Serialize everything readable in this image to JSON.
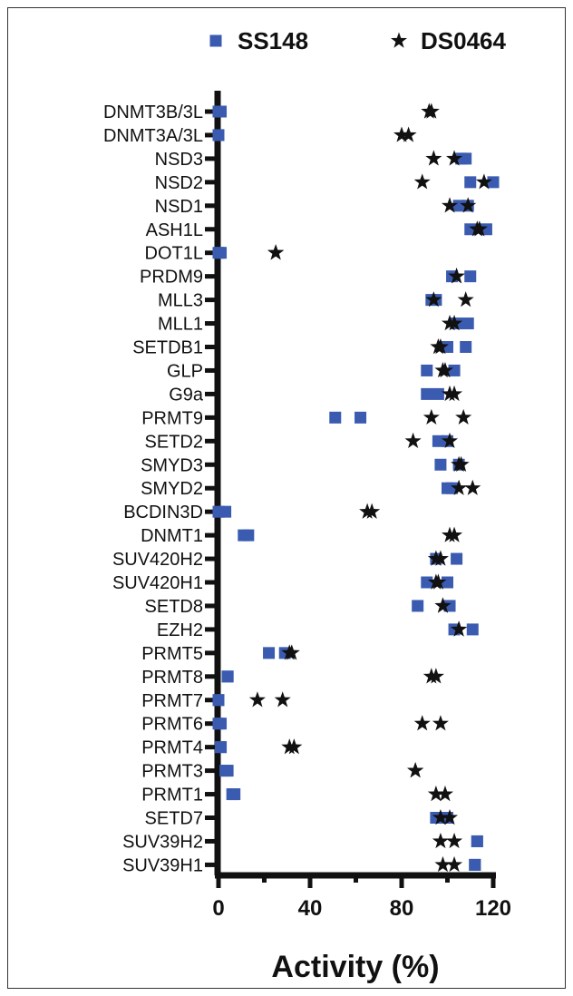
{
  "chart_data": {
    "type": "scatter",
    "orientation": "horizontal",
    "xlabel": "Activity (%)",
    "xlim": [
      0,
      120
    ],
    "xticks": [
      0,
      40,
      80,
      120
    ],
    "legend_position": "top",
    "categories": [
      "DNMT3B/3L",
      "DNMT3A/3L",
      "NSD3",
      "NSD2",
      "NSD1",
      "ASH1L",
      "DOT1L",
      "PRDM9",
      "MLL3",
      "MLL1",
      "SETDB1",
      "GLP",
      "G9a",
      "PRMT9",
      "SETD2",
      "SMYD3",
      "SMYD2",
      "BCDIN3D",
      "DNMT1",
      "SUV420H2",
      "SUV420H1",
      "SETD8",
      "EZH2",
      "PRMT5",
      "PRMT8",
      "PRMT7",
      "PRMT6",
      "PRMT4",
      "PRMT3",
      "PRMT1",
      "SETD7",
      "SUV39H2",
      "SUV39H1"
    ],
    "series": [
      {
        "name": "SS148",
        "marker": "square",
        "color": "#3a5bb0",
        "values": [
          [
            0,
            1
          ],
          [
            0,
            0
          ],
          [
            106,
            108
          ],
          [
            110,
            120
          ],
          [
            105,
            109
          ],
          [
            110,
            117
          ],
          [
            0,
            1
          ],
          [
            102,
            110
          ],
          [
            93,
            95
          ],
          [
            104,
            109
          ],
          [
            100,
            108
          ],
          [
            91,
            103
          ],
          [
            91,
            96
          ],
          [
            51,
            62
          ],
          [
            96,
            100
          ],
          [
            97,
            105
          ],
          [
            100,
            102
          ],
          [
            0,
            3
          ],
          [
            11,
            13
          ],
          [
            95,
            104
          ],
          [
            91,
            100
          ],
          [
            87,
            101
          ],
          [
            103,
            111
          ],
          [
            22,
            29
          ],
          [
            4,
            4
          ],
          [
            0,
            0
          ],
          [
            0,
            1
          ],
          [
            1,
            1
          ],
          [
            3,
            4
          ],
          [
            6,
            7
          ],
          [
            95,
            100
          ],
          [
            113,
            113
          ],
          [
            112,
            112
          ]
        ]
      },
      {
        "name": "DS0464",
        "marker": "star",
        "color": "#111111",
        "values": [
          [
            92,
            93
          ],
          [
            80,
            83
          ],
          [
            94,
            103
          ],
          [
            89,
            116
          ],
          [
            101,
            109
          ],
          [
            113,
            114
          ],
          [
            25,
            25
          ],
          [
            104,
            104
          ],
          [
            94,
            108
          ],
          [
            101,
            103
          ],
          [
            96,
            97
          ],
          [
            98,
            99
          ],
          [
            101,
            103
          ],
          [
            93,
            107
          ],
          [
            85,
            101
          ],
          [
            105,
            106
          ],
          [
            105,
            111
          ],
          [
            65,
            67
          ],
          [
            101,
            103
          ],
          [
            95,
            97
          ],
          [
            95,
            96
          ],
          [
            98,
            98
          ],
          [
            105,
            105
          ],
          [
            31,
            32
          ],
          [
            93,
            95
          ],
          [
            17,
            28
          ],
          [
            89,
            97
          ],
          [
            31,
            33
          ],
          [
            86,
            86
          ],
          [
            95,
            99
          ],
          [
            97,
            101
          ],
          [
            97,
            103
          ],
          [
            98,
            103
          ]
        ]
      }
    ]
  }
}
